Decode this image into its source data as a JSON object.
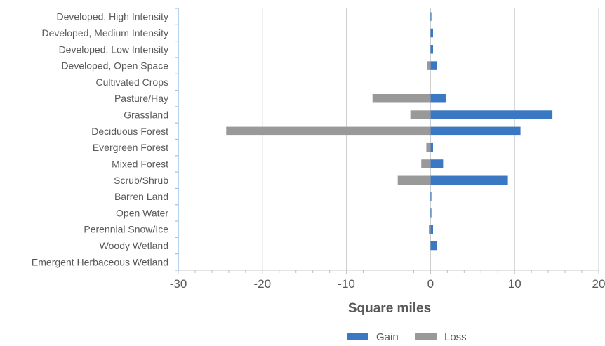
{
  "chart_data": {
    "type": "bar",
    "orientation": "horizontal",
    "title": "",
    "xlabel": "Square miles",
    "ylabel": "",
    "xlim": [
      -30,
      20
    ],
    "xticks": [
      -30,
      -20,
      -10,
      0,
      10,
      20
    ],
    "grid": "vertical major gridlines",
    "legend_position": "bottom",
    "categories": [
      "Developed, High Intensity",
      "Developed, Medium Intensity",
      "Developed, Low Intensity",
      "Developed, Open Space",
      "Cultivated Crops",
      "Pasture/Hay",
      "Grassland",
      "Deciduous Forest",
      "Evergreen Forest",
      "Mixed Forest",
      "Scrub/Shrub",
      "Barren Land",
      "Open Water",
      "Perennial Snow/Ice",
      "Woody Wetland",
      "Emergent Herbaceous Wetland"
    ],
    "series": [
      {
        "name": "Gain",
        "color": "#3b78c3",
        "values": [
          0.1,
          0.3,
          0.3,
          0.8,
          0,
          1.8,
          14.5,
          10.7,
          0.3,
          1.5,
          9.2,
          0.1,
          0.1,
          0.3,
          0.8,
          0
        ]
      },
      {
        "name": "Loss",
        "color": "#999999",
        "values": [
          0,
          0,
          0,
          -0.4,
          0,
          -6.9,
          -2.4,
          -24.3,
          -0.5,
          -1.1,
          -3.9,
          0,
          0,
          -0.2,
          0,
          0
        ]
      }
    ]
  }
}
